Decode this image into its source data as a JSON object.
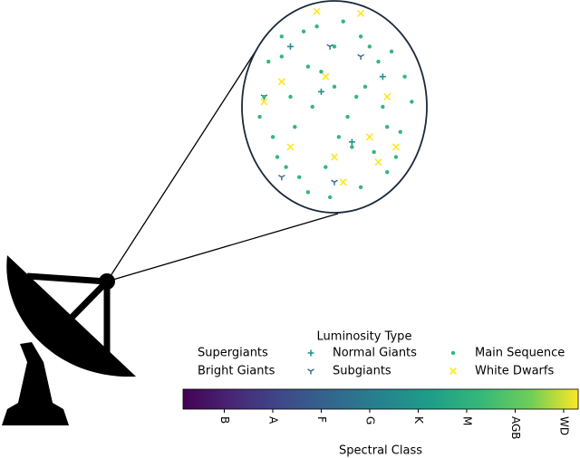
{
  "chart_data": {
    "type": "scatter",
    "legend_title": "Luminosity Type",
    "series": [
      {
        "name": "Supergiants",
        "x": [],
        "y": []
      },
      {
        "name": "Bright Giants",
        "x": [],
        "y": []
      },
      {
        "name": "Normal Giants",
        "color": "#21918c",
        "marker": "+",
        "x": [
          -0.5,
          0.2,
          0.55,
          -0.15
        ],
        "y": [
          0.6,
          -0.35,
          0.3,
          0.15
        ]
      },
      {
        "name": "Subgiants",
        "color": "#31688e",
        "marker": "tri",
        "x": [
          -0.8,
          0.0,
          -0.6,
          0.3,
          -0.05
        ],
        "y": [
          0.1,
          -0.75,
          -0.7,
          0.5,
          0.6
        ]
      },
      {
        "name": "Main Sequence",
        "color": "#35b779",
        "marker": "o",
        "x": [
          -0.8,
          -0.6,
          -0.4,
          -0.2,
          0,
          0.2,
          0.4,
          0.6,
          0.8,
          -0.7,
          -0.5,
          -0.3,
          -0.1,
          0.1,
          0.3,
          0.5,
          0.7,
          -0.85,
          -0.55,
          -0.25,
          0.05,
          0.35,
          0.65,
          0.88,
          -0.6,
          -0.3,
          0,
          0.3,
          0.6,
          -0.45,
          -0.15,
          0.15,
          0.45,
          -0.75,
          0.75,
          -0.35,
          0.25,
          -0.05,
          0.55,
          -0.65
        ],
        "y": [
          0.1,
          0.5,
          -0.7,
          0.8,
          0.2,
          -0.4,
          0.6,
          -0.2,
          0.3,
          -0.3,
          0.1,
          0.4,
          -0.6,
          0.85,
          -0.8,
          0.45,
          -0.5,
          -0.1,
          -0.6,
          0.0,
          -0.3,
          0.2,
          0.55,
          0.05,
          0.7,
          -0.85,
          0.6,
          0.7,
          -0.65,
          -0.2,
          0.35,
          -0.1,
          -0.45,
          0.45,
          -0.25,
          0.75,
          0.1,
          -0.9,
          0.0,
          -0.5
        ]
      },
      {
        "name": "White Dwarfs",
        "color": "#fde725",
        "marker": "x",
        "x": [
          -0.2,
          0.3,
          -0.8,
          0.5,
          -0.5,
          0.7,
          0.1,
          -0.1,
          0.6,
          -0.6,
          0.0,
          0.4
        ],
        "y": [
          0.95,
          0.93,
          0.05,
          -0.55,
          -0.4,
          -0.4,
          -0.75,
          0.3,
          0.1,
          0.25,
          -0.5,
          -0.3
        ]
      }
    ],
    "colorbar": {
      "label": "Spectral Class",
      "lim": [
        -0.85,
        7.3
      ],
      "ticks": [
        {
          "value": 0,
          "label": "B"
        },
        {
          "value": 1,
          "label": "A"
        },
        {
          "value": 2,
          "label": "F"
        },
        {
          "value": 3,
          "label": "G"
        },
        {
          "value": 4,
          "label": "K"
        },
        {
          "value": 5,
          "label": "M"
        },
        {
          "value": 6,
          "label": "AGB"
        },
        {
          "value": 7,
          "label": "WD"
        }
      ]
    }
  }
}
